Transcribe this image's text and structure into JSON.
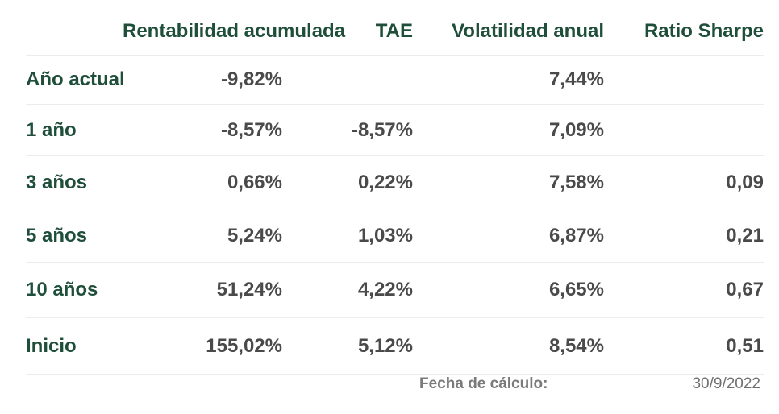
{
  "table": {
    "headers": [
      "",
      "Rentabilidad acumulada",
      "TAE",
      "Volatilidad anual",
      "Ratio Sharpe"
    ],
    "rows": [
      {
        "label": "Año actual",
        "rentabilidad": "-9,82%",
        "tae": "",
        "volatilidad": "7,44%",
        "sharpe": ""
      },
      {
        "label": "1 año",
        "rentabilidad": "-8,57%",
        "tae": "-8,57%",
        "volatilidad": "7,09%",
        "sharpe": ""
      },
      {
        "label": "3 años",
        "rentabilidad": "0,66%",
        "tae": "0,22%",
        "volatilidad": "7,58%",
        "sharpe": "0,09"
      },
      {
        "label": "5 años",
        "rentabilidad": "5,24%",
        "tae": "1,03%",
        "volatilidad": "6,87%",
        "sharpe": "0,21"
      },
      {
        "label": "10 años",
        "rentabilidad": "51,24%",
        "tae": "4,22%",
        "volatilidad": "6,65%",
        "sharpe": "0,67"
      },
      {
        "label": "Inicio",
        "rentabilidad": "155,02%",
        "tae": "5,12%",
        "volatilidad": "8,54%",
        "sharpe": "0,51"
      }
    ]
  },
  "footer": {
    "label": "Fecha de cálculo:",
    "value": "30/9/2022"
  },
  "colors": {
    "header_text": "#1f4e3a",
    "row_label_text": "#1f4e3a",
    "value_text": "#4a4a4a",
    "divider": "#ececec"
  }
}
